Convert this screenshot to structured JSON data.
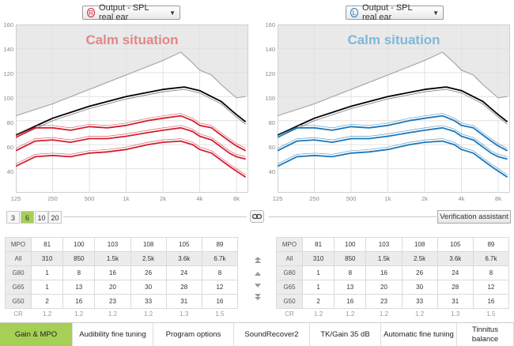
{
  "left_panel": {
    "ear_letter": "R",
    "dropdown_label": "Output - SPL real ear",
    "situation": "Calm situation",
    "accent": "#d22030",
    "situation_color": "#e58585"
  },
  "right_panel": {
    "ear_letter": "L",
    "dropdown_label": "Output - SPL real ear",
    "situation": "Calm situation",
    "accent": "#1d77b8",
    "situation_color": "#7db8dc"
  },
  "y_ticks": [
    "160",
    "140",
    "120",
    "100",
    "80",
    "60",
    "40"
  ],
  "x_ticks": [
    "125",
    "250",
    "500",
    "1k",
    "2k",
    "4k",
    "8k"
  ],
  "channel_options": [
    "3",
    "6",
    "10",
    "20"
  ],
  "channel_selected": "6",
  "link_icon": "link-icon",
  "verification_button": "Verification assistant",
  "table": {
    "row_labels": {
      "mpo": "MPO",
      "all": "All",
      "g80": "G80",
      "g65": "G65",
      "g50": "G50",
      "cr": "CR"
    },
    "mpo": [
      "81",
      "100",
      "103",
      "108",
      "105",
      "89"
    ],
    "all": [
      "310",
      "850",
      "1.5k",
      "2.5k",
      "3.6k",
      "6.7k"
    ],
    "g80": [
      "1",
      "8",
      "16",
      "26",
      "24",
      "8"
    ],
    "g65": [
      "1",
      "13",
      "20",
      "30",
      "28",
      "12"
    ],
    "g50": [
      "2",
      "16",
      "23",
      "33",
      "31",
      "16"
    ],
    "cr": [
      "1.2",
      "1.2",
      "1.2",
      "1.2",
      "1.3",
      "1.5"
    ]
  },
  "tabs": [
    "Gain & MPO",
    "Audibility fine tuning",
    "Program options",
    "SoundRecover2",
    "TK/Gain 35 dB",
    "Automatic fine tuning",
    "Tinnitus balance"
  ],
  "active_tab": "Gain & MPO",
  "chart_data": {
    "type": "line",
    "title": "Calm situation",
    "ylabel": "Output - SPL real ear",
    "xlabel": "",
    "x_scale": "log",
    "xlim": [
      125,
      10000
    ],
    "ylim": [
      20,
      160
    ],
    "x_ticks": [
      125,
      250,
      500,
      1000,
      2000,
      4000,
      8000
    ],
    "y_ticks": [
      40,
      60,
      80,
      100,
      120,
      140,
      160
    ],
    "grid": true,
    "series": [
      {
        "name": "Threshold",
        "color": "#aaaaaa",
        "x": [
          125,
          250,
          500,
          1000,
          2000,
          2800,
          3500,
          4000,
          5000,
          6000,
          7000,
          8000,
          9500
        ],
        "y": [
          84,
          94,
          106,
          118,
          130,
          137,
          128,
          122,
          118,
          110,
          104,
          99,
          100
        ]
      },
      {
        "name": "MPO",
        "color": "#000000",
        "x": [
          125,
          250,
          500,
          1000,
          2000,
          3000,
          4000,
          5000,
          6000,
          7000,
          8000,
          9500
        ],
        "y": [
          68,
          82,
          92,
          100,
          106,
          108,
          105,
          100,
          96,
          90,
          85,
          79
        ]
      },
      {
        "name": "G80",
        "color": "#d22030",
        "x": [
          125,
          180,
          250,
          350,
          500,
          700,
          1000,
          1500,
          2000,
          2800,
          3500,
          4000,
          5000,
          6000,
          7000,
          8000,
          9500
        ],
        "y": [
          66,
          74,
          74,
          72,
          75,
          74,
          76,
          80,
          82,
          84,
          80,
          76,
          74,
          68,
          63,
          59,
          55
        ]
      },
      {
        "name": "G65",
        "color": "#d22030",
        "x": [
          125,
          180,
          250,
          350,
          500,
          700,
          1000,
          1500,
          2000,
          2800,
          3500,
          4000,
          5000,
          6000,
          7000,
          8000,
          9500
        ],
        "y": [
          55,
          63,
          64,
          62,
          65,
          65,
          67,
          70,
          72,
          74,
          71,
          67,
          64,
          58,
          53,
          50,
          48
        ]
      },
      {
        "name": "G50",
        "color": "#d22030",
        "x": [
          125,
          180,
          250,
          350,
          500,
          700,
          1000,
          1500,
          2000,
          2800,
          3500,
          4000,
          5000,
          6000,
          7000,
          8000,
          9500
        ],
        "y": [
          42,
          50,
          51,
          50,
          53,
          54,
          56,
          60,
          62,
          63,
          60,
          56,
          53,
          47,
          42,
          38,
          33
        ]
      }
    ]
  }
}
